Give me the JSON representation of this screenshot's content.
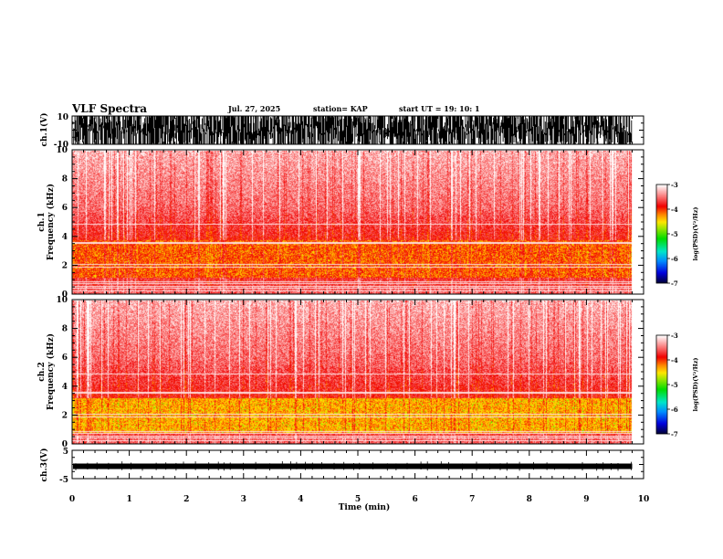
{
  "header": {
    "title": "VLF Spectra",
    "date": "Jul. 27, 2025",
    "station": "station= KAP",
    "start": "start  UT =    19: 10: 1"
  },
  "chart_data": [
    {
      "type": "line",
      "name": "ch1-waveform",
      "ylabel": "ch.1(V)",
      "ylim": [
        -10,
        10
      ],
      "yticks": [
        "10",
        "-10"
      ],
      "xlim": [
        0,
        10
      ],
      "data_end_min": 9.8,
      "description_values": "dense saturated waveform oscillating between -10 and 10 V"
    },
    {
      "type": "heatmap",
      "name": "ch1-spectrogram",
      "ylabel_line1": "ch.1",
      "ylabel_line2": "Frequency  (kHz)",
      "ylim": [
        0,
        10
      ],
      "yticks": [
        "0",
        "2",
        "4",
        "6",
        "8",
        "10"
      ],
      "xlim": [
        0,
        10
      ],
      "data_end_min": 9.8,
      "intense_band_khz": [
        1.2,
        3.8
      ],
      "colorbar": {
        "label": "log(PSD)(V²/Hz)",
        "range": [
          -7,
          -3
        ],
        "ticks": [
          "-3",
          "-4",
          "-5",
          "-6",
          "-7"
        ]
      }
    },
    {
      "type": "heatmap",
      "name": "ch2-spectrogram",
      "ylabel_line1": "ch.2",
      "ylabel_line2": "Frequency  (kHz)",
      "ylim": [
        0,
        10
      ],
      "yticks": [
        "0",
        "2",
        "4",
        "6",
        "8",
        "10"
      ],
      "xlim": [
        0,
        10
      ],
      "data_end_min": 9.8,
      "intense_band_khz": [
        0.8,
        3.2
      ],
      "colorbar": {
        "label": "log(PSD)(V²/Hz)",
        "range": [
          -7,
          -3
        ],
        "ticks": [
          "-3",
          "-4",
          "-5",
          "-6",
          "-7"
        ]
      }
    },
    {
      "type": "line",
      "name": "ch3-waveform",
      "ylabel": "ch.3(V)",
      "ylim": [
        -5,
        5
      ],
      "yticks": [
        "5",
        "-5"
      ],
      "xlim": [
        0,
        10
      ],
      "data_end_min": 9.8,
      "level_v": 0,
      "xlabel": "Time  (min)",
      "xticks": [
        "0",
        "1",
        "2",
        "3",
        "4",
        "5",
        "6",
        "7",
        "8",
        "9",
        "10"
      ]
    }
  ]
}
